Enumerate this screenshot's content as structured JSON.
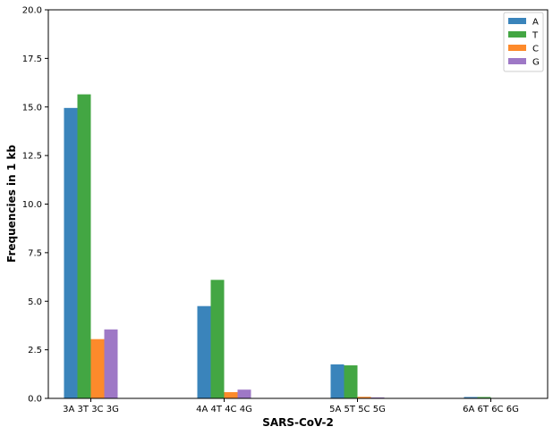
{
  "chart_data": {
    "type": "bar",
    "title": "",
    "xlabel": "SARS-CoV-2",
    "ylabel": "Frequencies in 1 kb",
    "ylim": [
      0,
      20
    ],
    "yticks": [
      "0.0",
      "2.5",
      "5.0",
      "7.5",
      "10.0",
      "12.5",
      "15.0",
      "17.5",
      "20.0"
    ],
    "categories": [
      "3A 3T 3C 3G",
      "4A 4T 4C 4G",
      "5A 5T 5C 5G",
      "6A 6T 6C 6G"
    ],
    "series": [
      {
        "name": "A",
        "color": "#3a84bb",
        "values": [
          14.95,
          4.75,
          1.75,
          0.07
        ]
      },
      {
        "name": "T",
        "color": "#43a643",
        "values": [
          15.65,
          6.1,
          1.7,
          0.07
        ]
      },
      {
        "name": "C",
        "color": "#fd8a2b",
        "values": [
          3.05,
          0.32,
          0.08,
          0.0
        ]
      },
      {
        "name": "G",
        "color": "#9e78c6",
        "values": [
          3.55,
          0.45,
          0.05,
          0.0
        ]
      }
    ],
    "legend_position": "top-right",
    "grid": false
  }
}
